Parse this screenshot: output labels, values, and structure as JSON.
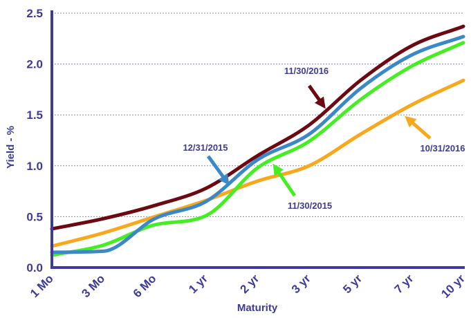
{
  "chart_data": {
    "type": "line",
    "title": "",
    "xlabel": "Maturity",
    "ylabel": "Yield - %",
    "ylim": [
      0,
      2.5
    ],
    "yticks": [
      "0.0",
      "0.5",
      "1.0",
      "1.5",
      "2.0",
      "2.5"
    ],
    "categories": [
      "1 Mo",
      "3 Mo",
      "6 Mo",
      "1 yr",
      "2 yr",
      "3 yr",
      "5 yr",
      "7 yr",
      "10 yr"
    ],
    "grid": true,
    "series": [
      {
        "name": "11/30/2016",
        "color": "#6b0a12",
        "values": [
          0.38,
          0.48,
          0.61,
          0.78,
          1.1,
          1.4,
          1.84,
          2.18,
          2.37
        ]
      },
      {
        "name": "12/31/2015",
        "color": "#3b88c8",
        "values": [
          0.15,
          0.16,
          0.48,
          0.65,
          1.06,
          1.31,
          1.76,
          2.09,
          2.27
        ]
      },
      {
        "name": "11/30/2015",
        "color": "#44ee22",
        "values": [
          0.12,
          0.22,
          0.42,
          0.51,
          0.98,
          1.24,
          1.65,
          1.98,
          2.21
        ]
      },
      {
        "name": "10/31/2016",
        "color": "#f8a81c",
        "values": [
          0.21,
          0.34,
          0.5,
          0.66,
          0.85,
          1.0,
          1.31,
          1.6,
          1.84
        ]
      }
    ],
    "annotations": [
      {
        "text": "11/30/2016",
        "series": "11/30/2016"
      },
      {
        "text": "12/31/2015",
        "series": "12/31/2015"
      },
      {
        "text": "11/30/2015",
        "series": "11/30/2015"
      },
      {
        "text": "10/31/2016",
        "series": "10/31/2016"
      }
    ]
  }
}
